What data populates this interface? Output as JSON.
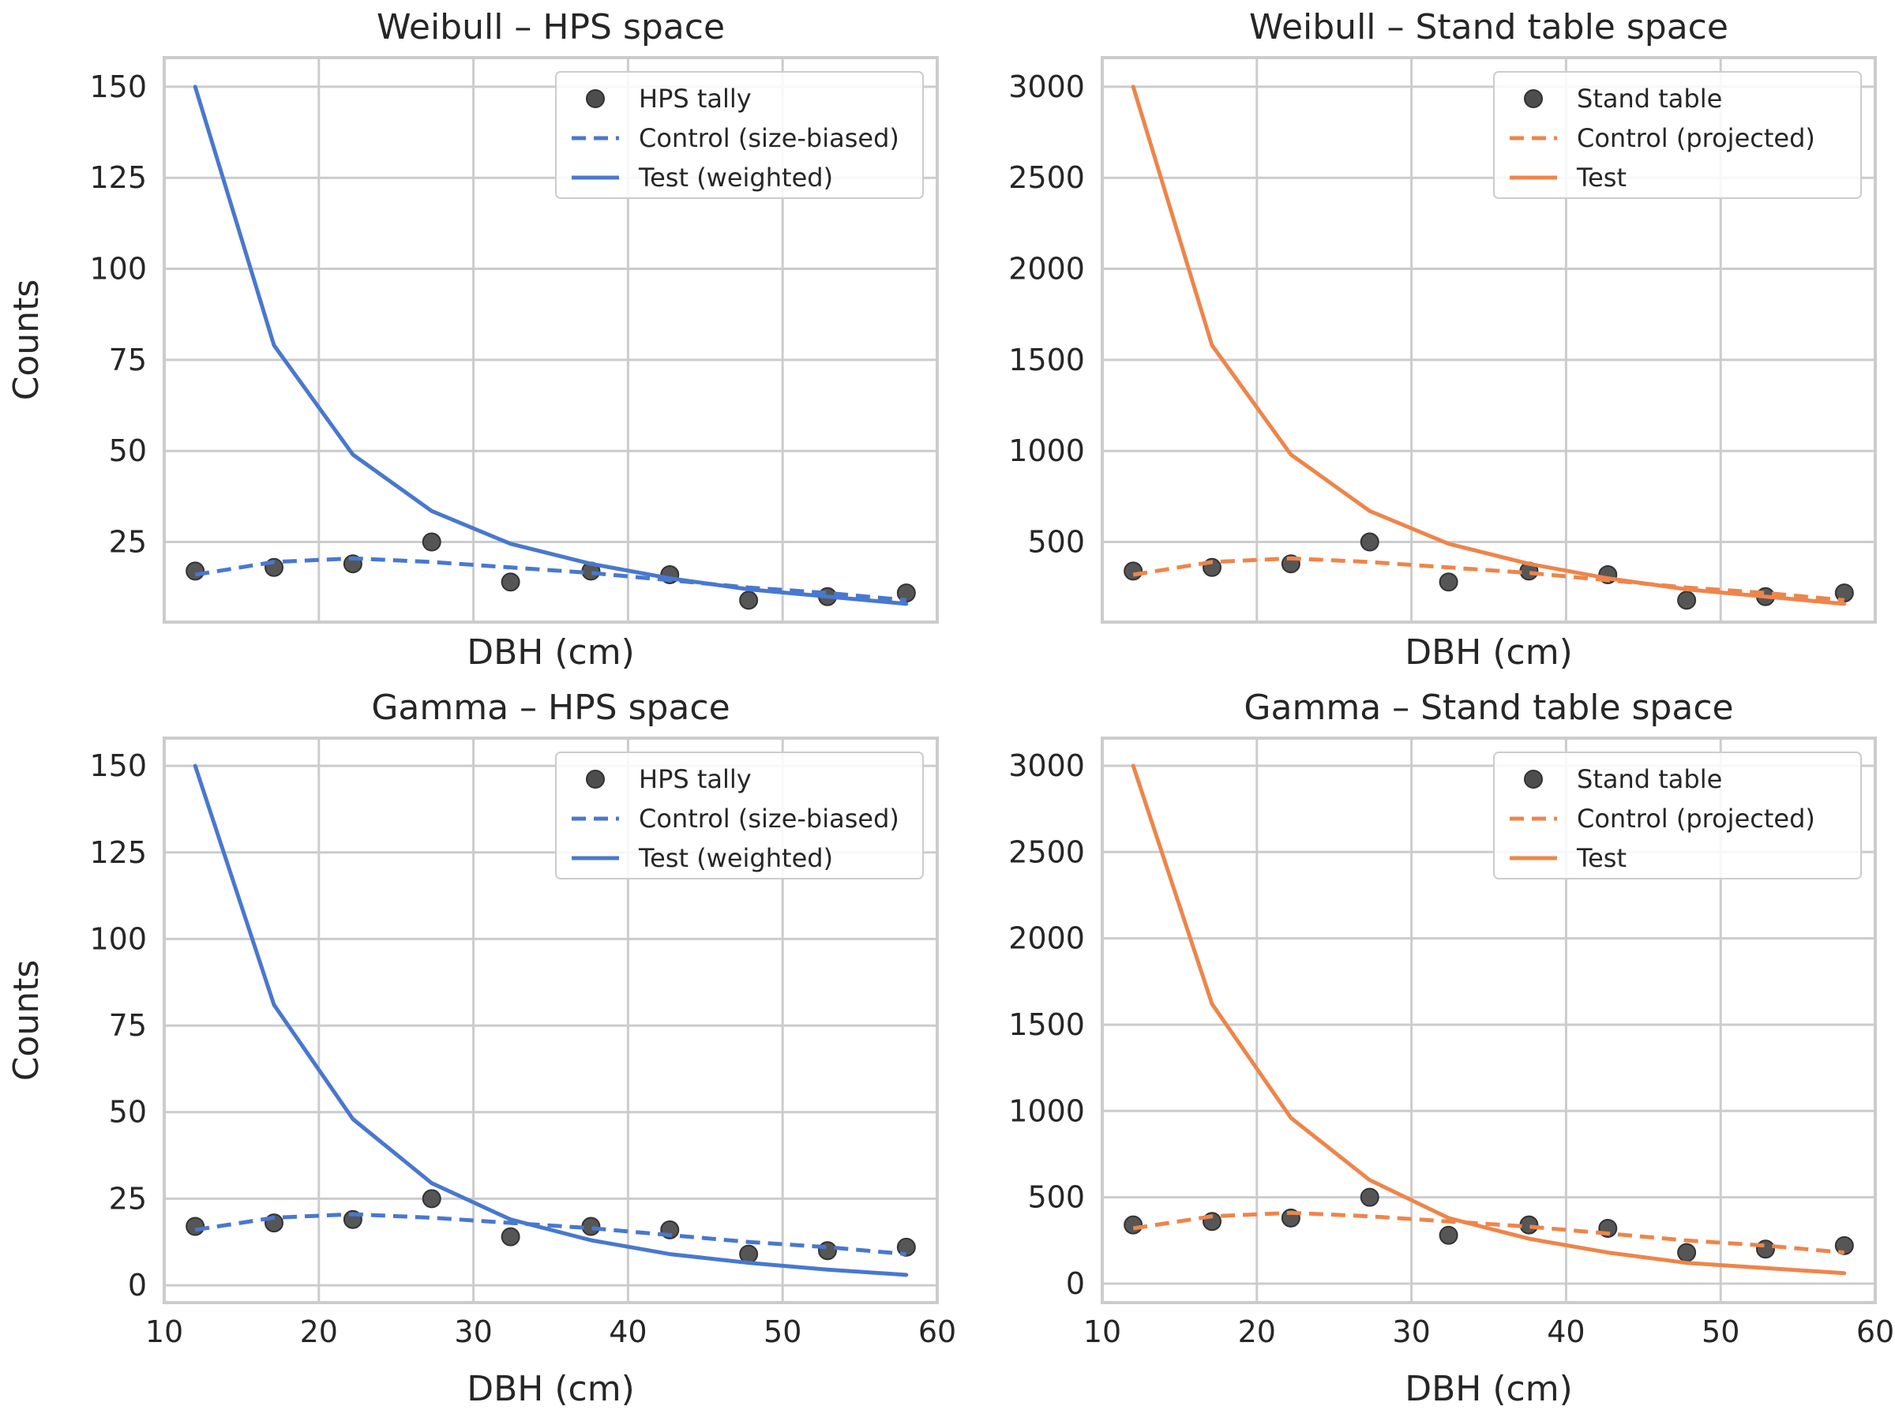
{
  "chart_data": [
    {
      "type": "line",
      "title": "Weibull – HPS space",
      "xlabel": "DBH (cm)",
      "ylabel": "Counts",
      "xlim": [
        10,
        60
      ],
      "ylim": [
        3,
        158
      ],
      "yticks": [
        25,
        50,
        75,
        100,
        125,
        150
      ],
      "xticks": [],
      "grid": true,
      "legend_position": "top-right",
      "x": [
        12,
        17.1,
        22.2,
        27.3,
        32.4,
        37.6,
        42.7,
        47.8,
        52.9,
        58
      ],
      "series": [
        {
          "name": "HPS tally",
          "kind": "scatter",
          "color": "#4d4d4d",
          "values": [
            17,
            18,
            19,
            25,
            14,
            17,
            16,
            9,
            10,
            11
          ]
        },
        {
          "name": "Control (size-biased)",
          "kind": "dashed",
          "color": "#4878cf",
          "values": [
            16,
            19.5,
            20.5,
            19.5,
            18,
            16.5,
            14.5,
            12.5,
            11,
            9
          ]
        },
        {
          "name": "Test (weighted)",
          "kind": "solid",
          "color": "#4878cf",
          "values": [
            150,
            79,
            49,
            33.5,
            24.5,
            19,
            15,
            12,
            10,
            8
          ]
        }
      ]
    },
    {
      "type": "line",
      "title": "Weibull – Stand table space",
      "xlabel": "DBH (cm)",
      "ylabel": "",
      "xlim": [
        10,
        60
      ],
      "ylim": [
        60,
        3160
      ],
      "yticks": [
        500,
        1000,
        1500,
        2000,
        2500,
        3000
      ],
      "xticks": [],
      "grid": true,
      "legend_position": "top-right",
      "x": [
        12,
        17.1,
        22.2,
        27.3,
        32.4,
        37.6,
        42.7,
        47.8,
        52.9,
        58
      ],
      "series": [
        {
          "name": "Stand table",
          "kind": "scatter",
          "color": "#4d4d4d",
          "values": [
            340,
            360,
            380,
            500,
            280,
            340,
            320,
            180,
            200,
            220
          ]
        },
        {
          "name": "Control (projected)",
          "kind": "dashed",
          "color": "#ee854a",
          "values": [
            320,
            390,
            410,
            390,
            360,
            330,
            290,
            250,
            220,
            180
          ]
        },
        {
          "name": "Test",
          "kind": "solid",
          "color": "#ee854a",
          "values": [
            3000,
            1580,
            980,
            670,
            490,
            380,
            300,
            240,
            200,
            160
          ]
        }
      ]
    },
    {
      "type": "line",
      "title": "Gamma – HPS space",
      "xlabel": "DBH (cm)",
      "ylabel": "Counts",
      "xlim": [
        10,
        60
      ],
      "ylim": [
        -5,
        158
      ],
      "yticks": [
        0,
        25,
        50,
        75,
        100,
        125,
        150
      ],
      "xticks": [
        10,
        20,
        30,
        40,
        50,
        60
      ],
      "grid": true,
      "legend_position": "top-right",
      "x": [
        12,
        17.1,
        22.2,
        27.3,
        32.4,
        37.6,
        42.7,
        47.8,
        52.9,
        58
      ],
      "series": [
        {
          "name": "HPS tally",
          "kind": "scatter",
          "color": "#4d4d4d",
          "values": [
            17,
            18,
            19,
            25,
            14,
            17,
            16,
            9,
            10,
            11
          ]
        },
        {
          "name": "Control (size-biased)",
          "kind": "dashed",
          "color": "#4878cf",
          "values": [
            16,
            19.5,
            20.5,
            19.5,
            18,
            16.5,
            14.5,
            12.5,
            11,
            9
          ]
        },
        {
          "name": "Test (weighted)",
          "kind": "solid",
          "color": "#4878cf",
          "values": [
            150,
            81,
            48,
            29.5,
            19,
            13,
            9,
            6.5,
            4.5,
            3
          ]
        }
      ]
    },
    {
      "type": "line",
      "title": "Gamma – Stand table space",
      "xlabel": "DBH (cm)",
      "ylabel": "",
      "xlim": [
        10,
        60
      ],
      "ylim": [
        -110,
        3160
      ],
      "yticks": [
        0,
        500,
        1000,
        1500,
        2000,
        2500,
        3000
      ],
      "xticks": [
        10,
        20,
        30,
        40,
        50,
        60
      ],
      "grid": true,
      "legend_position": "top-right",
      "x": [
        12,
        17.1,
        22.2,
        27.3,
        32.4,
        37.6,
        42.7,
        47.8,
        52.9,
        58
      ],
      "series": [
        {
          "name": "Stand table",
          "kind": "scatter",
          "color": "#4d4d4d",
          "values": [
            340,
            360,
            380,
            500,
            280,
            340,
            320,
            180,
            200,
            220
          ]
        },
        {
          "name": "Control (projected)",
          "kind": "dashed",
          "color": "#ee854a",
          "values": [
            320,
            390,
            410,
            390,
            360,
            330,
            290,
            250,
            220,
            180
          ]
        },
        {
          "name": "Test",
          "kind": "solid",
          "color": "#ee854a",
          "values": [
            3000,
            1620,
            960,
            600,
            380,
            260,
            180,
            120,
            90,
            60
          ]
        }
      ]
    }
  ]
}
